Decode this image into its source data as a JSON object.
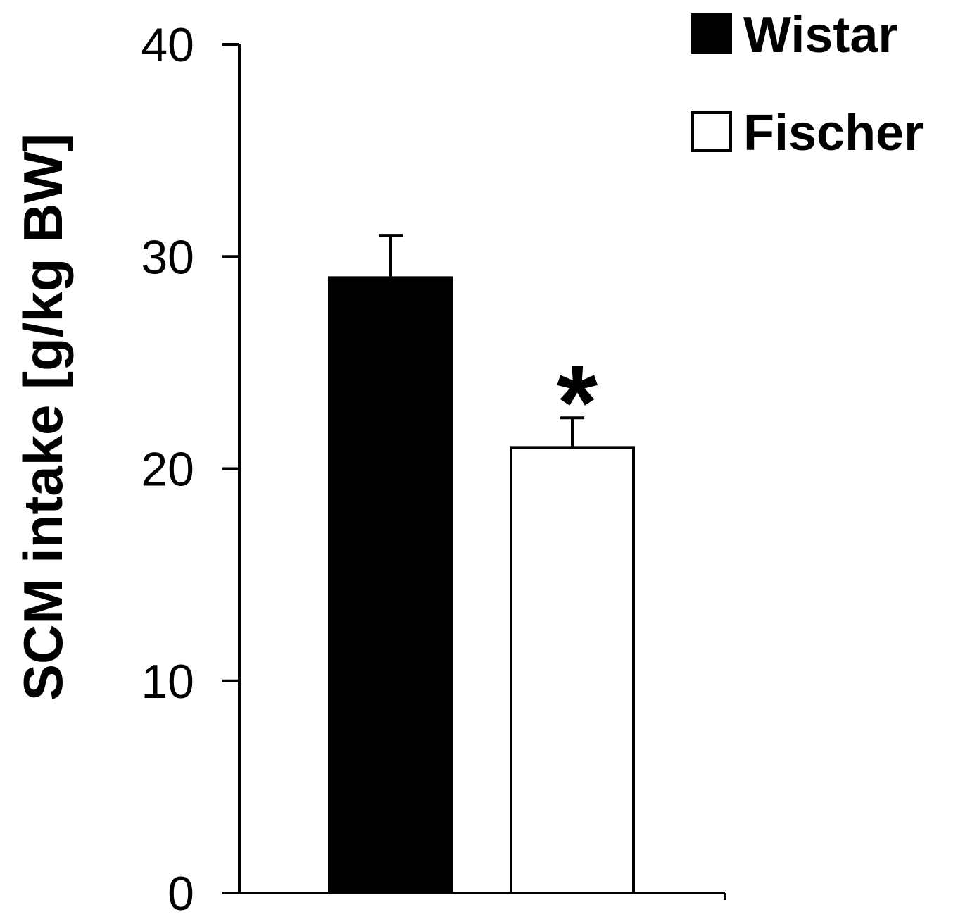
{
  "chart_data": {
    "type": "bar",
    "ylabel": "SCM intake [g/kg BW]",
    "xlabel": "",
    "ylim": [
      0,
      40
    ],
    "yticks": [
      0,
      10,
      20,
      30,
      40
    ],
    "grid": false,
    "legend_position": "top-right",
    "series": [
      {
        "name": "Wistar",
        "value": 29,
        "error": 2,
        "color": "#000000",
        "fill": "solid"
      },
      {
        "name": "Fischer",
        "value": 21,
        "error": 1.4,
        "color": "#ffffff",
        "fill": "hollow",
        "annotation": "*"
      }
    ]
  }
}
